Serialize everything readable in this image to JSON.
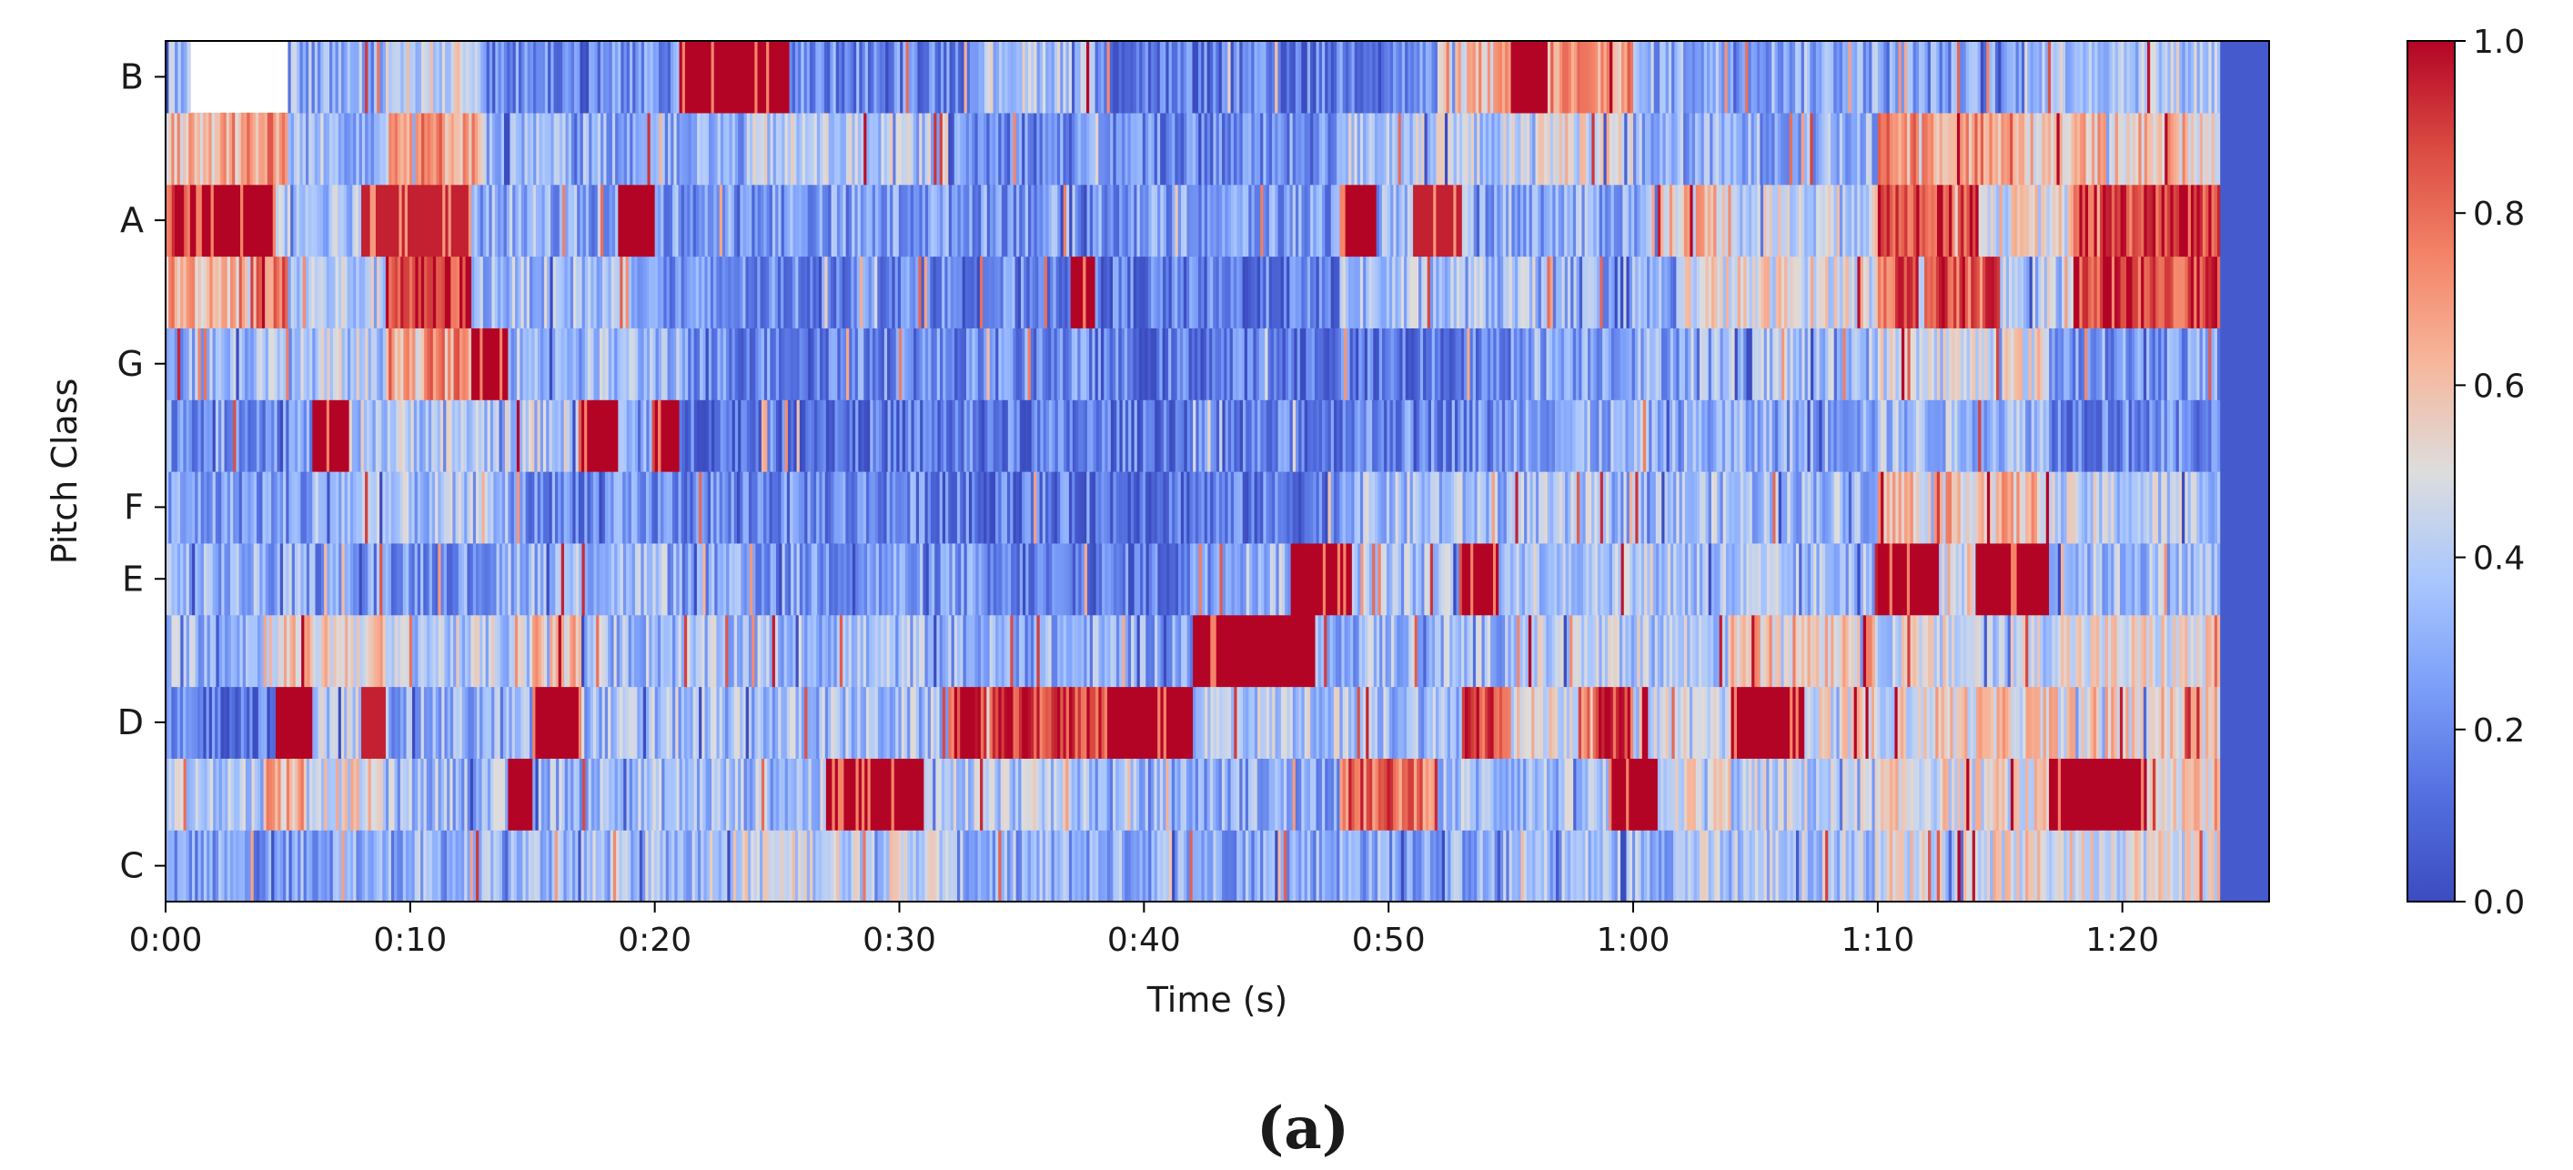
{
  "panel_label": "(a)",
  "chart_data": {
    "type": "heatmap",
    "title": "",
    "xlabel": "Time (s)",
    "ylabel": "Pitch Class",
    "x_range_seconds": [
      0,
      86
    ],
    "x_ticks": [
      {
        "value": 0,
        "label": "0:00"
      },
      {
        "value": 10,
        "label": "0:10"
      },
      {
        "value": 20,
        "label": "0:20"
      },
      {
        "value": 30,
        "label": "0:30"
      },
      {
        "value": 40,
        "label": "0:40"
      },
      {
        "value": 50,
        "label": "0:50"
      },
      {
        "value": 60,
        "label": "1:00"
      },
      {
        "value": 70,
        "label": "1:10"
      },
      {
        "value": 80,
        "label": "1:20"
      }
    ],
    "pitch_classes": [
      "C",
      "C#",
      "D",
      "D#",
      "E",
      "F",
      "F#",
      "G",
      "G#",
      "A",
      "A#",
      "B"
    ],
    "y_tick_labels": [
      {
        "index": 0,
        "label": "C"
      },
      {
        "index": 2,
        "label": "D"
      },
      {
        "index": 4,
        "label": "E"
      },
      {
        "index": 5,
        "label": "F"
      },
      {
        "index": 7,
        "label": "G"
      },
      {
        "index": 9,
        "label": "A"
      },
      {
        "index": 11,
        "label": "B"
      }
    ],
    "colorbar": {
      "colormap": "coolwarm",
      "range": [
        0.0,
        1.0
      ],
      "tick_values": [
        0.0,
        0.2,
        0.4,
        0.6,
        0.8,
        1.0
      ],
      "tick_labels": [
        "0.0",
        "0.2",
        "0.4",
        "0.6",
        "0.8",
        "1.0"
      ],
      "low_color": "#3b4cc0",
      "mid_color": "#dddddd",
      "high_color": "#b40426"
    },
    "approx_segment_values_note": "approximate chroma energy by segment, read from the colors",
    "rows": {
      "B": [
        [
          0,
          1,
          0.3
        ],
        [
          5,
          9,
          0.3
        ],
        [
          9,
          13,
          0.45
        ],
        [
          13,
          21,
          0.2
        ],
        [
          21,
          25.5,
          1.0
        ],
        [
          25.5,
          33,
          0.2
        ],
        [
          33,
          38,
          0.4
        ],
        [
          38,
          48,
          0.15
        ],
        [
          48,
          52,
          0.2
        ],
        [
          52,
          55,
          0.6
        ],
        [
          55,
          56.5,
          1.0
        ],
        [
          56.5,
          60,
          0.7
        ],
        [
          60,
          70,
          0.3
        ],
        [
          70,
          76,
          0.25
        ],
        [
          76,
          84,
          0.4
        ],
        [
          84,
          86,
          0.05
        ]
      ],
      "A#": [
        [
          0,
          2,
          0.6
        ],
        [
          2,
          5,
          0.7
        ],
        [
          5,
          9,
          0.35
        ],
        [
          9,
          13,
          0.7
        ],
        [
          13,
          24,
          0.3
        ],
        [
          24,
          32,
          0.4
        ],
        [
          32,
          48,
          0.2
        ],
        [
          48,
          56,
          0.4
        ],
        [
          56,
          60,
          0.5
        ],
        [
          60,
          70,
          0.3
        ],
        [
          70,
          76,
          0.7
        ],
        [
          76,
          84,
          0.6
        ],
        [
          84,
          86,
          0.05
        ]
      ],
      "A": [
        [
          0,
          1,
          0.9
        ],
        [
          1,
          4.5,
          1.0
        ],
        [
          4.5,
          8,
          0.4
        ],
        [
          8,
          12.5,
          0.95
        ],
        [
          12.5,
          18.5,
          0.3
        ],
        [
          18.5,
          20,
          1.0
        ],
        [
          20,
          48,
          0.25
        ],
        [
          48,
          49.5,
          1.0
        ],
        [
          49.5,
          51,
          0.3
        ],
        [
          51,
          53,
          0.95
        ],
        [
          53,
          61,
          0.3
        ],
        [
          61,
          64,
          0.6
        ],
        [
          64,
          70,
          0.45
        ],
        [
          70,
          74,
          0.9
        ],
        [
          74,
          78,
          0.5
        ],
        [
          78,
          84,
          0.9
        ],
        [
          84,
          86,
          0.05
        ]
      ],
      "G#": [
        [
          0,
          3,
          0.65
        ],
        [
          3,
          5,
          0.75
        ],
        [
          5,
          9,
          0.4
        ],
        [
          9,
          12.5,
          0.9
        ],
        [
          12.5,
          20,
          0.35
        ],
        [
          20,
          37,
          0.2
        ],
        [
          37,
          38,
          1.0
        ],
        [
          38,
          48,
          0.15
        ],
        [
          48,
          56,
          0.35
        ],
        [
          56,
          62,
          0.3
        ],
        [
          62,
          70,
          0.5
        ],
        [
          70,
          75,
          0.85
        ],
        [
          75,
          78,
          0.4
        ],
        [
          78,
          84,
          0.9
        ],
        [
          84,
          86,
          0.05
        ]
      ],
      "G": [
        [
          0,
          6,
          0.35
        ],
        [
          6,
          9,
          0.4
        ],
        [
          9,
          12.5,
          0.7
        ],
        [
          12.5,
          14,
          1.0
        ],
        [
          14,
          21,
          0.35
        ],
        [
          21,
          38,
          0.2
        ],
        [
          38,
          55,
          0.15
        ],
        [
          55,
          62,
          0.3
        ],
        [
          62,
          70,
          0.35
        ],
        [
          70,
          74,
          0.45
        ],
        [
          74,
          77,
          0.5
        ],
        [
          77,
          84,
          0.25
        ],
        [
          84,
          86,
          0.05
        ]
      ],
      "F#": [
        [
          0,
          6,
          0.25
        ],
        [
          6,
          7.5,
          1.0
        ],
        [
          7.5,
          17,
          0.4
        ],
        [
          17,
          18.5,
          1.0
        ],
        [
          18.5,
          20,
          0.3
        ],
        [
          20,
          21,
          1.0
        ],
        [
          21,
          48,
          0.15
        ],
        [
          48,
          55,
          0.2
        ],
        [
          55,
          70,
          0.3
        ],
        [
          70,
          77,
          0.35
        ],
        [
          77,
          84,
          0.2
        ],
        [
          84,
          86,
          0.05
        ]
      ],
      "F": [
        [
          0,
          6,
          0.25
        ],
        [
          6,
          14,
          0.35
        ],
        [
          14,
          32,
          0.2
        ],
        [
          32,
          48,
          0.15
        ],
        [
          48,
          62,
          0.35
        ],
        [
          62,
          70,
          0.35
        ],
        [
          70,
          77,
          0.6
        ],
        [
          77,
          84,
          0.4
        ],
        [
          84,
          86,
          0.05
        ]
      ],
      "E": [
        [
          0,
          6,
          0.3
        ],
        [
          6,
          14,
          0.25
        ],
        [
          14,
          21,
          0.35
        ],
        [
          21,
          33,
          0.25
        ],
        [
          33,
          42,
          0.15
        ],
        [
          42,
          46,
          0.35
        ],
        [
          46,
          48.5,
          1.0
        ],
        [
          48.5,
          53,
          0.35
        ],
        [
          53,
          54.5,
          1.0
        ],
        [
          54.5,
          62,
          0.4
        ],
        [
          62,
          70,
          0.35
        ],
        [
          70,
          72.5,
          1.0
        ],
        [
          72.5,
          74,
          0.5
        ],
        [
          74,
          77,
          1.0
        ],
        [
          77,
          84,
          0.35
        ],
        [
          84,
          86,
          0.05
        ]
      ],
      "D#": [
        [
          0,
          4,
          0.35
        ],
        [
          4,
          9,
          0.55
        ],
        [
          9,
          15,
          0.4
        ],
        [
          15,
          17,
          0.6
        ],
        [
          17,
          32,
          0.35
        ],
        [
          32,
          42,
          0.3
        ],
        [
          42,
          47,
          1.0
        ],
        [
          47,
          55,
          0.35
        ],
        [
          55,
          64,
          0.4
        ],
        [
          64,
          70,
          0.6
        ],
        [
          70,
          77,
          0.45
        ],
        [
          77,
          84,
          0.5
        ],
        [
          84,
          86,
          0.05
        ]
      ],
      "D": [
        [
          0,
          4.5,
          0.15
        ],
        [
          4.5,
          6,
          1.0
        ],
        [
          6,
          8,
          0.4
        ],
        [
          8,
          9,
          0.95
        ],
        [
          9,
          15,
          0.3
        ],
        [
          15,
          17,
          1.0
        ],
        [
          17,
          32,
          0.35
        ],
        [
          32,
          38.5,
          0.9
        ],
        [
          38.5,
          42,
          1.0
        ],
        [
          42,
          48,
          0.4
        ],
        [
          48,
          53,
          0.35
        ],
        [
          53,
          55,
          0.9
        ],
        [
          55,
          58,
          0.5
        ],
        [
          58,
          60,
          0.9
        ],
        [
          60,
          64,
          0.45
        ],
        [
          64,
          67,
          1.0
        ],
        [
          67,
          72,
          0.5
        ],
        [
          72,
          77,
          0.55
        ],
        [
          77,
          84,
          0.55
        ],
        [
          84,
          86,
          0.05
        ]
      ],
      "C#": [
        [
          0,
          4,
          0.4
        ],
        [
          4,
          6,
          0.65
        ],
        [
          6,
          9,
          0.5
        ],
        [
          9,
          14,
          0.35
        ],
        [
          14,
          15,
          1.0
        ],
        [
          15,
          27,
          0.35
        ],
        [
          27,
          31,
          1.0
        ],
        [
          31,
          38,
          0.4
        ],
        [
          38,
          48,
          0.3
        ],
        [
          48,
          52,
          0.8
        ],
        [
          52,
          59,
          0.35
        ],
        [
          59,
          61,
          1.0
        ],
        [
          61,
          64,
          0.5
        ],
        [
          64,
          70,
          0.4
        ],
        [
          70,
          77,
          0.5
        ],
        [
          77,
          81,
          1.0
        ],
        [
          81,
          84,
          0.6
        ],
        [
          84,
          86,
          0.05
        ]
      ],
      "C": [
        [
          0,
          6,
          0.25
        ],
        [
          6,
          14,
          0.3
        ],
        [
          14,
          22,
          0.35
        ],
        [
          22,
          32,
          0.45
        ],
        [
          32,
          48,
          0.3
        ],
        [
          48,
          56,
          0.3
        ],
        [
          56,
          62,
          0.35
        ],
        [
          62,
          70,
          0.4
        ],
        [
          70,
          77,
          0.5
        ],
        [
          77,
          84,
          0.5
        ],
        [
          84,
          86,
          0.05
        ]
      ]
    }
  }
}
